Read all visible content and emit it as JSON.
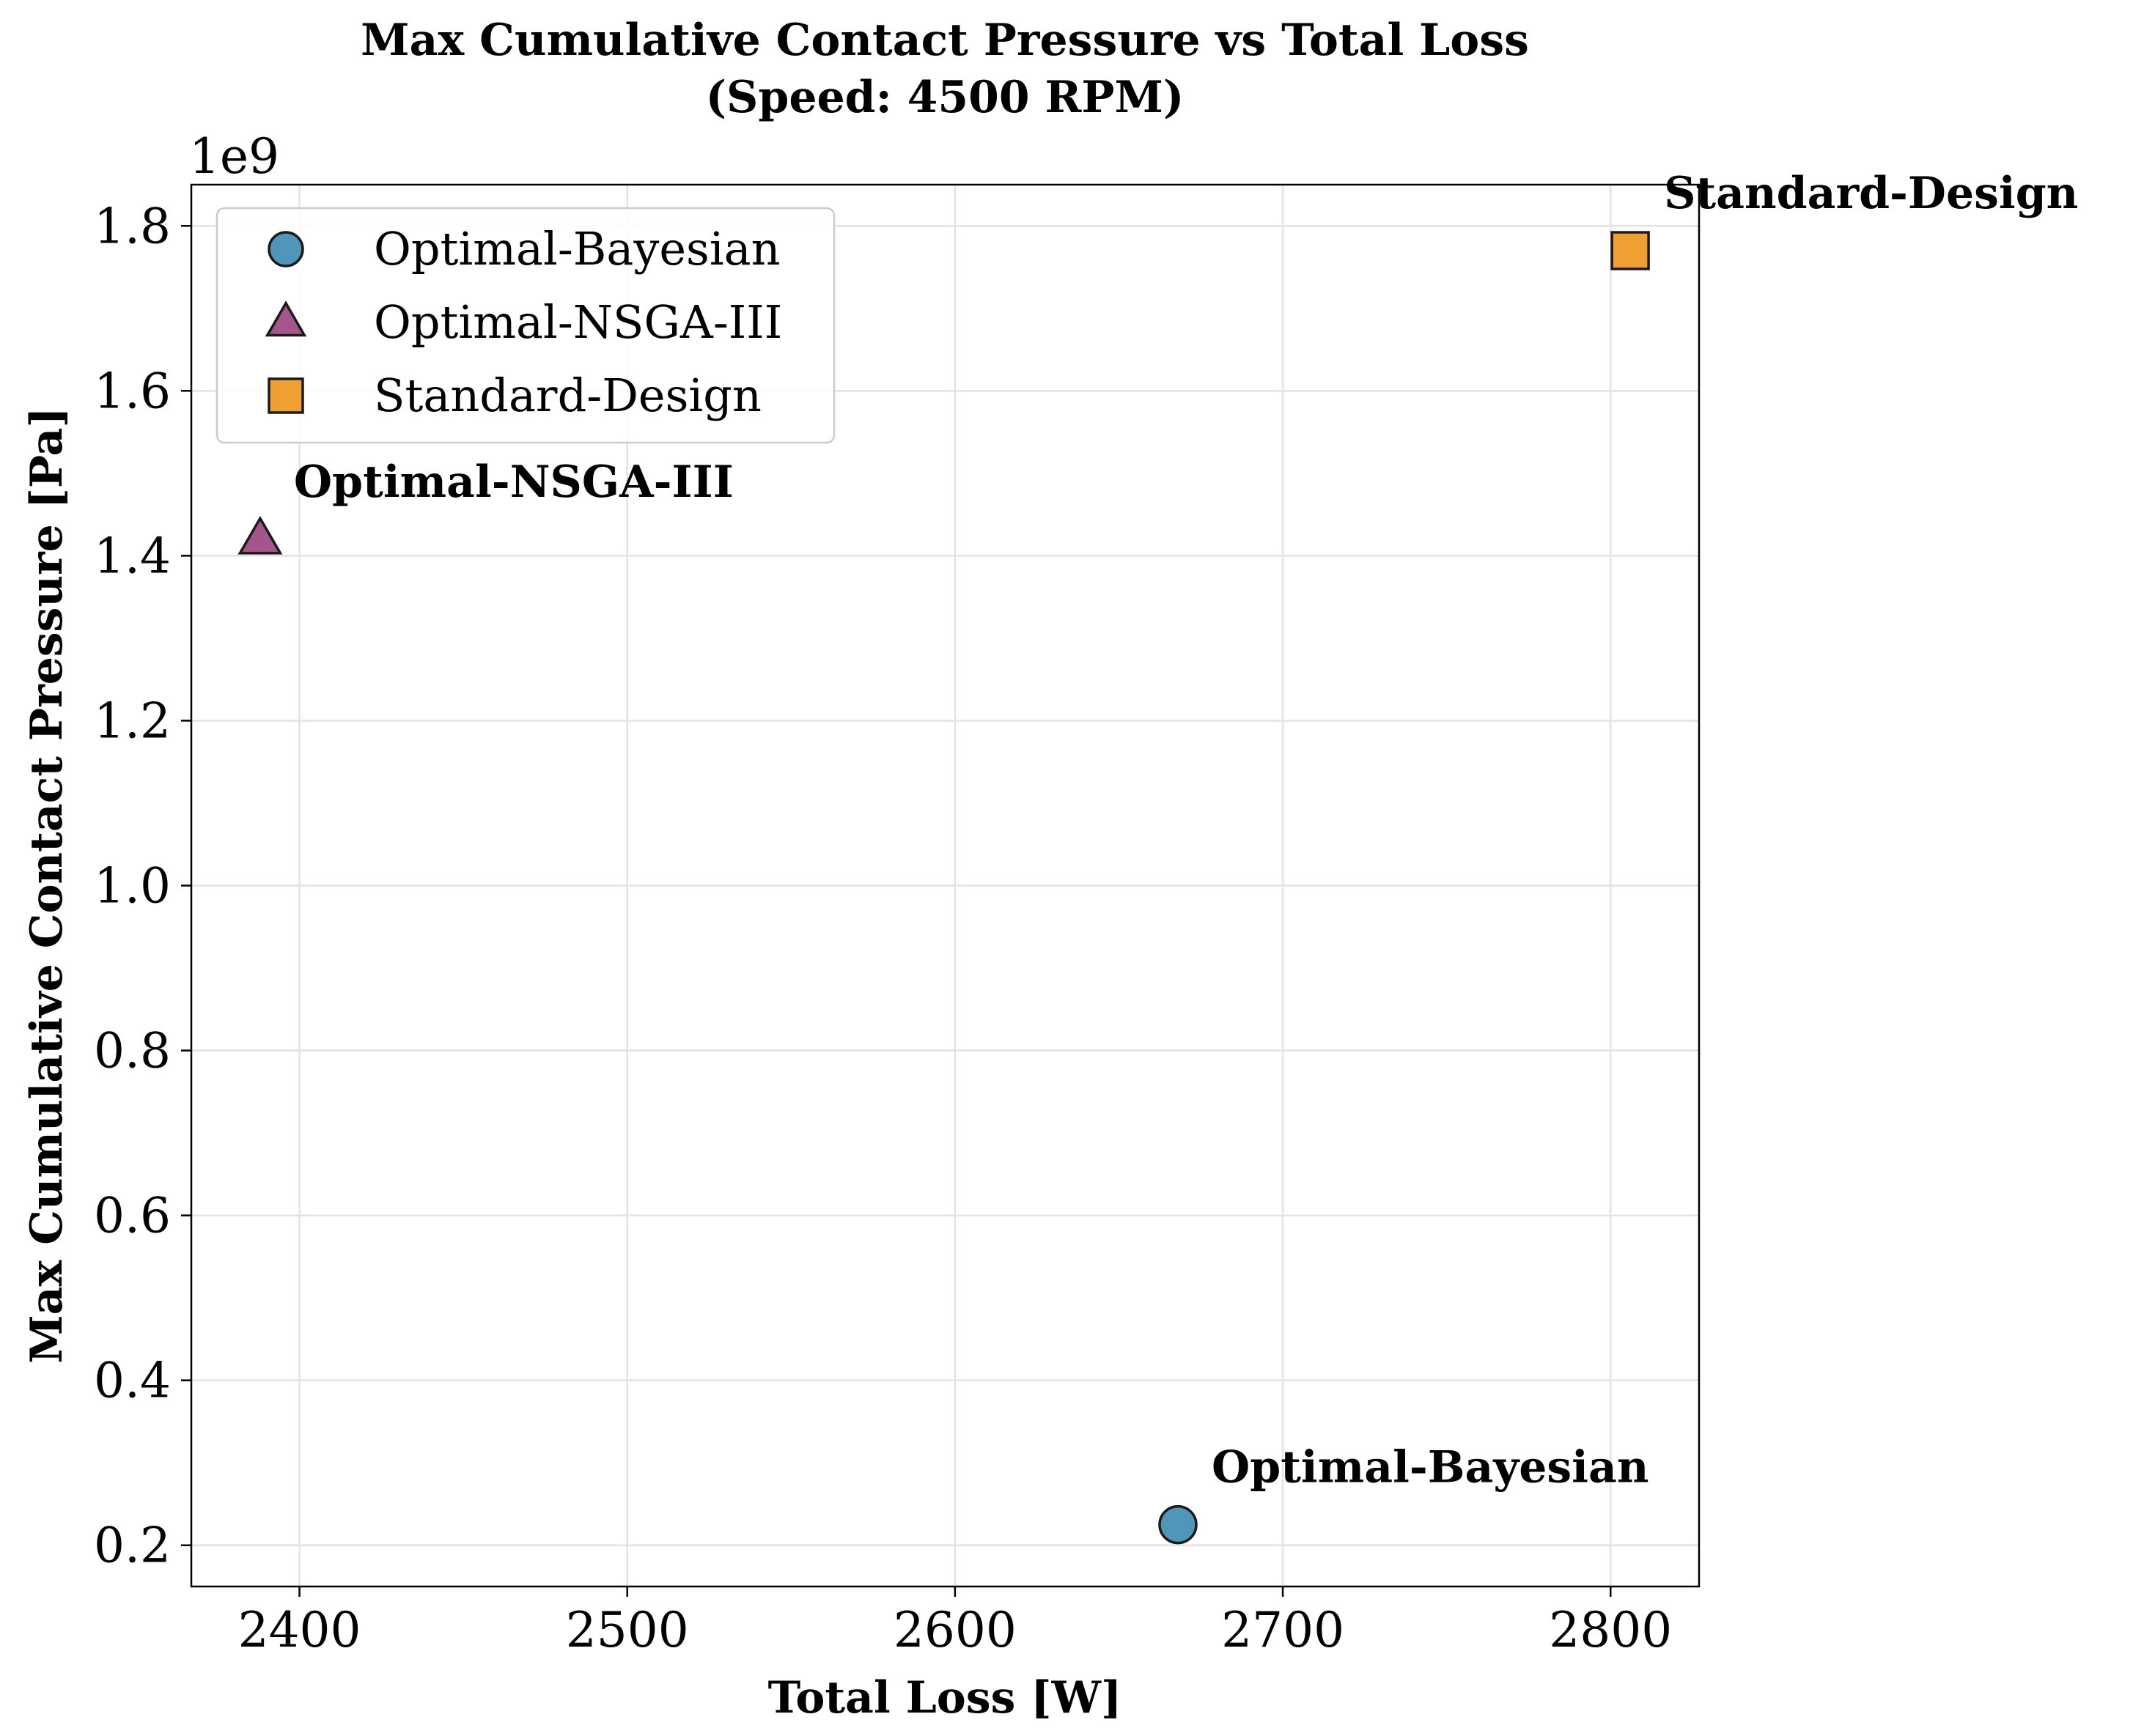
{
  "chart_data": {
    "type": "scatter",
    "title_line1": "Max Cumulative Contact Pressure vs Total Loss",
    "title_line2": "(Speed: 4500 RPM)",
    "xlabel": "Total Loss [W]",
    "ylabel": "Max Cumulative Contact Pressure [Pa]",
    "y_offset_label": "1e9",
    "xlim": [
      2367,
      2827
    ],
    "ylim": [
      0.15,
      1.85
    ],
    "y_scale_factor": 1000000000,
    "x_ticks": [
      2400,
      2500,
      2600,
      2700,
      2800
    ],
    "x_tick_labels": [
      "2400",
      "2500",
      "2600",
      "2700",
      "2800"
    ],
    "y_ticks": [
      0.2,
      0.4,
      0.6,
      0.8,
      1.0,
      1.2,
      1.4,
      1.6,
      1.8
    ],
    "y_tick_labels": [
      "0.2",
      "0.4",
      "0.6",
      "0.8",
      "1.0",
      "1.2",
      "1.4",
      "1.6",
      "1.8"
    ],
    "grid": true,
    "legend_position": "top-left",
    "series": [
      {
        "name": "Optimal-Bayesian",
        "marker": "circle",
        "color": "#4f96ba",
        "x": 2668,
        "y": 0.225,
        "annotation": "Optimal-Bayesian"
      },
      {
        "name": "Optimal-NSGA-III",
        "marker": "triangle",
        "color": "#a5558a",
        "x": 2388,
        "y": 1.42,
        "annotation": "Optimal-NSGA-III"
      },
      {
        "name": "Standard-Design",
        "marker": "square",
        "color": "#f0a032",
        "x": 2806,
        "y": 1.77,
        "annotation": "Standard-Design"
      }
    ]
  }
}
